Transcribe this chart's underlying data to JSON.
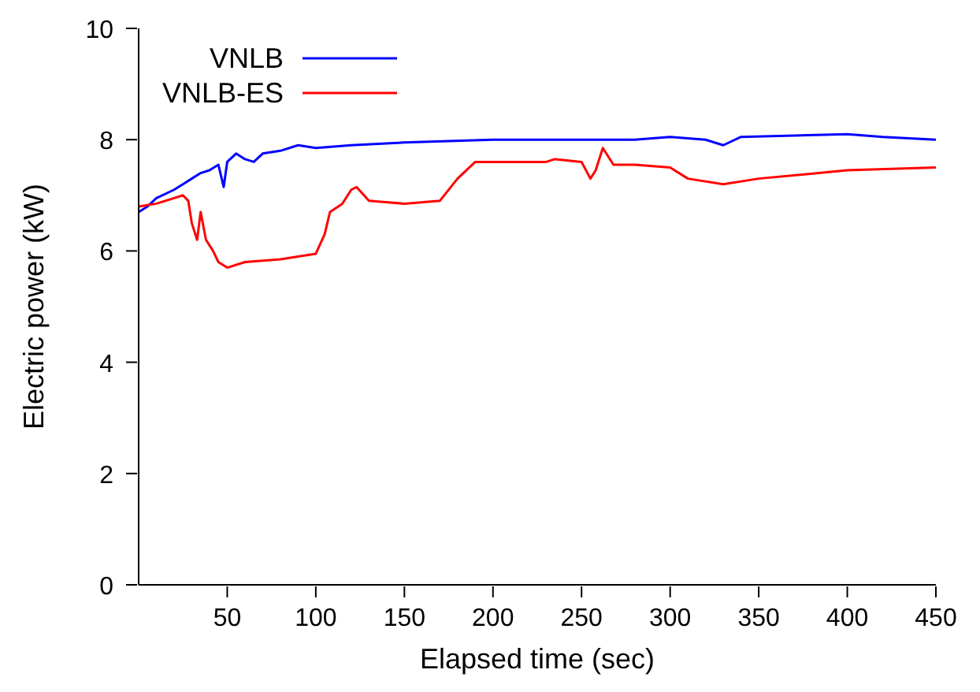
{
  "chart_data": {
    "type": "line",
    "xlabel": "Elapsed time (sec)",
    "ylabel": "Electric power (kW)",
    "xlim": [
      0,
      450
    ],
    "xticks": [
      50,
      100,
      150,
      200,
      250,
      300,
      350,
      400,
      450
    ],
    "ylim": [
      0,
      10
    ],
    "yticks": [
      0,
      2,
      4,
      6,
      8,
      10
    ],
    "legend": "top left",
    "marker": "none",
    "line_style": "solid",
    "series": [
      {
        "name": "VNLB",
        "color": "#0000ff",
        "x": [
          0,
          5,
          10,
          20,
          25,
          30,
          35,
          40,
          45,
          48,
          50,
          55,
          60,
          65,
          70,
          80,
          90,
          100,
          120,
          150,
          200,
          250,
          280,
          300,
          320,
          330,
          340,
          400,
          420,
          450
        ],
        "values": [
          6.7,
          6.8,
          6.95,
          7.1,
          7.2,
          7.3,
          7.4,
          7.45,
          7.55,
          7.15,
          7.6,
          7.75,
          7.65,
          7.6,
          7.75,
          7.8,
          7.9,
          7.85,
          7.9,
          7.95,
          8.0,
          8.0,
          8.0,
          8.05,
          8.0,
          7.9,
          8.05,
          8.1,
          8.05,
          8.0
        ]
      },
      {
        "name": "VNLB-ES",
        "color": "#ff0000",
        "x": [
          0,
          10,
          20,
          25,
          28,
          30,
          33,
          35,
          38,
          42,
          45,
          50,
          60,
          80,
          100,
          105,
          108,
          115,
          120,
          123,
          130,
          150,
          170,
          180,
          190,
          200,
          230,
          235,
          250,
          255,
          258,
          262,
          268,
          280,
          300,
          310,
          330,
          350,
          400,
          450
        ],
        "values": [
          6.8,
          6.85,
          6.95,
          7.0,
          6.9,
          6.5,
          6.2,
          6.7,
          6.2,
          6.0,
          5.8,
          5.7,
          5.8,
          5.85,
          5.95,
          6.3,
          6.7,
          6.85,
          7.1,
          7.15,
          6.9,
          6.85,
          6.9,
          7.3,
          7.6,
          7.6,
          7.6,
          7.65,
          7.6,
          7.3,
          7.45,
          7.85,
          7.55,
          7.55,
          7.5,
          7.3,
          7.2,
          7.3,
          7.45,
          7.5
        ]
      }
    ]
  }
}
